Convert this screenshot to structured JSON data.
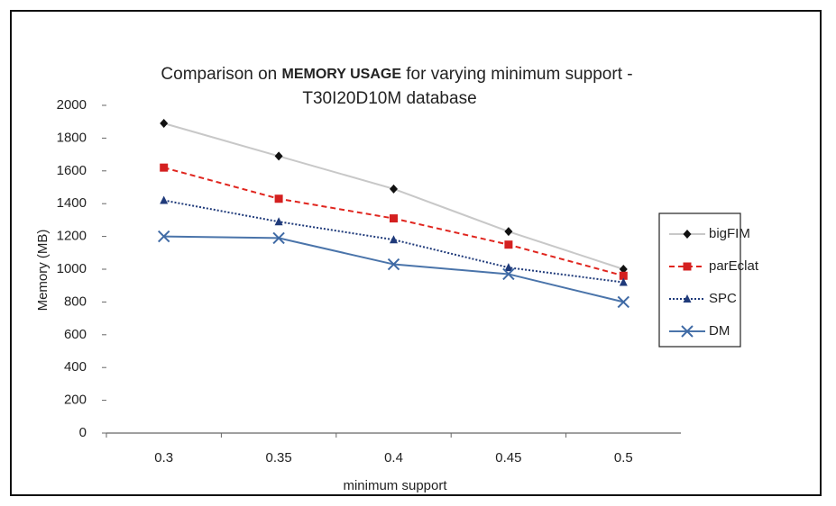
{
  "chart_data": {
    "type": "line",
    "title_line1": [
      "Comparison on",
      "MEMORY USAGE",
      "for varying minimum support -"
    ],
    "title_line2": "T30I20D10M database",
    "x_label": "minimum support",
    "y_label": "Memory (MB)",
    "categories": [
      "0.3",
      "0.35",
      "0.4",
      "0.45",
      "0.5"
    ],
    "series": [
      {
        "name": "bigFIM",
        "color": "#c8c8c8",
        "marker_color": "#111111",
        "marker": "diamond",
        "dash": "none",
        "values": [
          1890,
          1690,
          1490,
          1230,
          1000
        ]
      },
      {
        "name": "parEclat",
        "color": "#e0251e",
        "marker_color": "#d42020",
        "marker": "square",
        "dash": "6,4",
        "values": [
          1620,
          1430,
          1310,
          1150,
          960
        ]
      },
      {
        "name": "SPC",
        "color": "#1f3a7a",
        "marker_color": "#1f3a7a",
        "marker": "triangle",
        "dash": "2,2",
        "values": [
          1420,
          1290,
          1180,
          1010,
          920
        ]
      },
      {
        "name": "DM",
        "color": "#4a74aa",
        "marker_color": "#3f6aa5",
        "marker": "x",
        "dash": "none",
        "values": [
          1200,
          1190,
          1030,
          970,
          800
        ]
      }
    ],
    "ylim": [
      0,
      2000
    ],
    "yticks": [
      0,
      200,
      400,
      600,
      800,
      1000,
      1200,
      1400,
      1600,
      1800,
      2000
    ],
    "grid": false,
    "legend": "right"
  }
}
